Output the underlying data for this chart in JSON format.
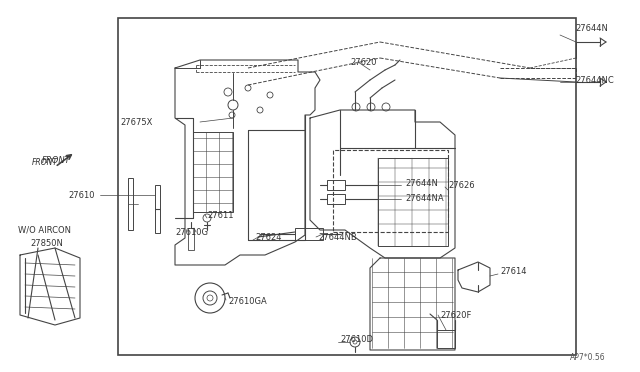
{
  "bg_color": "#ffffff",
  "lc": "#444444",
  "lw": 0.8,
  "fs": 6.0,
  "border": [
    118,
    18,
    576,
    355
  ],
  "diagram_code": "AP7*0.56",
  "labels": [
    [
      "27620",
      350,
      62,
      "left"
    ],
    [
      "27675X",
      120,
      122,
      "left"
    ],
    [
      "27626",
      448,
      185,
      "left"
    ],
    [
      "27644N",
      575,
      28,
      "left"
    ],
    [
      "27644NC",
      575,
      80,
      "left"
    ],
    [
      "27644N",
      405,
      183,
      "left"
    ],
    [
      "27644NA",
      405,
      198,
      "left"
    ],
    [
      "27644NB",
      318,
      237,
      "left"
    ],
    [
      "27624",
      255,
      237,
      "left"
    ],
    [
      "27610",
      68,
      195,
      "left"
    ],
    [
      "27611",
      207,
      215,
      "left"
    ],
    [
      "27610G",
      175,
      232,
      "left"
    ],
    [
      "27610GA",
      228,
      302,
      "left"
    ],
    [
      "27610D",
      340,
      340,
      "left"
    ],
    [
      "27620F",
      440,
      315,
      "left"
    ],
    [
      "27614",
      500,
      272,
      "left"
    ],
    [
      "W/O AIRCON",
      18,
      230,
      "left"
    ],
    [
      "27850N",
      30,
      243,
      "left"
    ],
    [
      "FRONT",
      42,
      160,
      "left"
    ]
  ]
}
